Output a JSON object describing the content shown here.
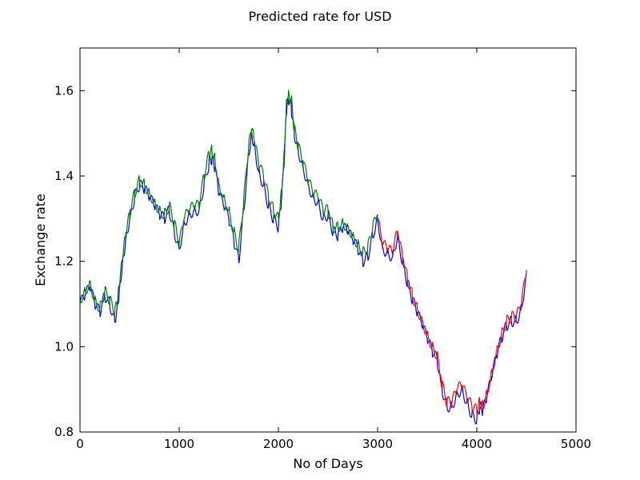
{
  "chart_data": {
    "type": "line",
    "title": "Predicted rate for USD",
    "xlabel": "No of Days",
    "ylabel": "Exchange rate",
    "xlim": [
      0,
      5000
    ],
    "ylim": [
      0.8,
      1.7
    ],
    "xticks": [
      0,
      1000,
      2000,
      3000,
      4000,
      5000
    ],
    "yticks": [
      0.8,
      1.0,
      1.2,
      1.4,
      1.6
    ],
    "xtick_labels": [
      "0",
      "1000",
      "2000",
      "3000",
      "4000",
      "5000"
    ],
    "ytick_labels": [
      "0.8",
      "1.0",
      "1.2",
      "1.4",
      "1.6"
    ],
    "grid": false,
    "legend": "none",
    "series": [
      {
        "color": "#0000ff",
        "x": [
          0,
          50,
          100,
          150,
          200,
          250,
          300,
          350,
          380,
          400,
          430,
          460,
          500,
          550,
          600,
          650,
          700,
          750,
          800,
          850,
          900,
          950,
          1000,
          1050,
          1100,
          1150,
          1200,
          1250,
          1300,
          1330,
          1360,
          1400,
          1450,
          1500,
          1550,
          1600,
          1650,
          1700,
          1730,
          1760,
          1800,
          1850,
          1900,
          1950,
          2000,
          2030,
          2060,
          2080,
          2100,
          2130,
          2160,
          2200,
          2250,
          2300,
          2350,
          2400,
          2450,
          2500,
          2550,
          2600,
          2650,
          2700,
          2750,
          2800,
          2850,
          2900,
          2950,
          3000,
          3050,
          3100,
          3150,
          3200,
          3250,
          3300,
          3350,
          3400,
          3450,
          3500,
          3550,
          3600,
          3650,
          3700,
          3750,
          3800,
          3850,
          3900,
          3950,
          4000,
          4030,
          4060,
          4100,
          4150,
          4200,
          4250,
          4300,
          4350,
          4400,
          4450,
          4500
        ],
        "y": [
          1.1,
          1.12,
          1.14,
          1.1,
          1.08,
          1.12,
          1.1,
          1.06,
          1.1,
          1.14,
          1.2,
          1.25,
          1.3,
          1.35,
          1.38,
          1.37,
          1.35,
          1.33,
          1.31,
          1.3,
          1.32,
          1.27,
          1.23,
          1.29,
          1.31,
          1.32,
          1.32,
          1.38,
          1.43,
          1.44,
          1.42,
          1.36,
          1.33,
          1.3,
          1.25,
          1.2,
          1.32,
          1.45,
          1.5,
          1.47,
          1.41,
          1.38,
          1.33,
          1.3,
          1.28,
          1.34,
          1.44,
          1.55,
          1.58,
          1.56,
          1.5,
          1.46,
          1.42,
          1.38,
          1.35,
          1.34,
          1.3,
          1.31,
          1.27,
          1.26,
          1.28,
          1.27,
          1.25,
          1.23,
          1.2,
          1.21,
          1.26,
          1.3,
          1.23,
          1.22,
          1.21,
          1.26,
          1.2,
          1.15,
          1.11,
          1.08,
          1.05,
          1.02,
          0.99,
          0.97,
          0.9,
          0.86,
          0.86,
          0.89,
          0.9,
          0.87,
          0.84,
          0.83,
          0.86,
          0.85,
          0.88,
          0.93,
          0.98,
          1.02,
          1.05,
          1.06,
          1.06,
          1.09,
          1.17
        ]
      },
      {
        "color": "#008000",
        "x": [
          0,
          50,
          100,
          150,
          200,
          250,
          300,
          350,
          380,
          400,
          430,
          460,
          500,
          550,
          600,
          650,
          700,
          750,
          800,
          850,
          900,
          950,
          1000,
          1050,
          1100,
          1150,
          1200,
          1250,
          1300,
          1330,
          1360,
          1400,
          1450,
          1500,
          1550,
          1600,
          1650,
          1700,
          1730,
          1760,
          1800,
          1850,
          1900,
          1950,
          2000,
          2030,
          2060,
          2080,
          2100,
          2130,
          2160,
          2200,
          2250,
          2300,
          2350,
          2400,
          2450,
          2500,
          2550,
          2600,
          2650,
          2700,
          2750,
          2800,
          2850,
          2900,
          2950,
          3000
        ],
        "y": [
          1.11,
          1.13,
          1.15,
          1.11,
          1.09,
          1.13,
          1.11,
          1.08,
          1.11,
          1.15,
          1.21,
          1.26,
          1.31,
          1.36,
          1.39,
          1.38,
          1.36,
          1.34,
          1.32,
          1.31,
          1.33,
          1.29,
          1.24,
          1.3,
          1.32,
          1.33,
          1.33,
          1.4,
          1.45,
          1.46,
          1.44,
          1.38,
          1.35,
          1.32,
          1.27,
          1.23,
          1.34,
          1.47,
          1.51,
          1.48,
          1.43,
          1.4,
          1.35,
          1.32,
          1.3,
          1.36,
          1.46,
          1.57,
          1.59,
          1.58,
          1.51,
          1.47,
          1.43,
          1.39,
          1.36,
          1.35,
          1.32,
          1.32,
          1.28,
          1.28,
          1.29,
          1.28,
          1.26,
          1.24,
          1.22,
          1.23,
          1.28,
          1.31
        ]
      },
      {
        "color": "#ff0000",
        "x": [
          3000,
          3050,
          3100,
          3150,
          3200,
          3250,
          3300,
          3350,
          3400,
          3450,
          3500,
          3550,
          3600,
          3650,
          3700,
          3750,
          3800,
          3850,
          3900,
          3950,
          4000,
          4030,
          4060,
          4100,
          4150,
          4200,
          4250,
          4300,
          4350,
          4400,
          4450,
          4500
        ],
        "y": [
          1.3,
          1.24,
          1.23,
          1.22,
          1.27,
          1.21,
          1.16,
          1.12,
          1.09,
          1.06,
          1.03,
          1.0,
          0.98,
          0.91,
          0.87,
          0.87,
          0.9,
          0.91,
          0.88,
          0.86,
          0.85,
          0.87,
          0.86,
          0.89,
          0.94,
          0.99,
          1.03,
          1.06,
          1.07,
          1.07,
          1.1,
          1.18
        ]
      }
    ]
  }
}
